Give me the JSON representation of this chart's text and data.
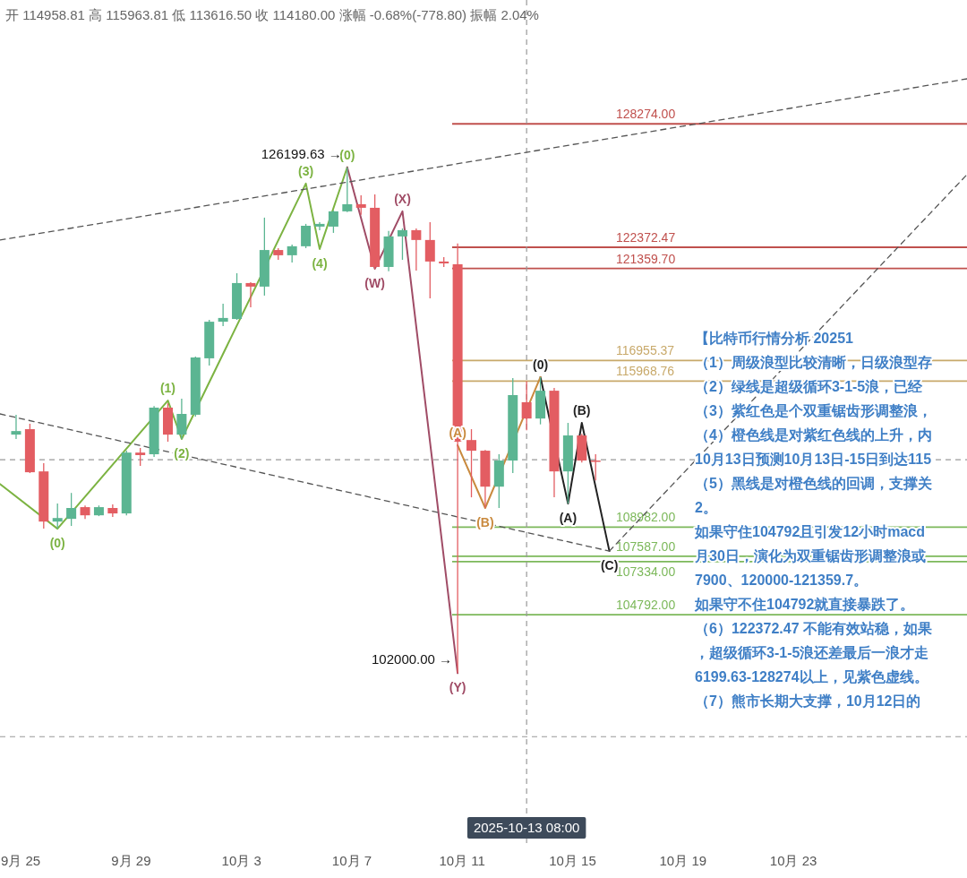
{
  "chart_data": {
    "type": "candlestick",
    "subtitle": "开 114958.81 高 115963.81 低 113616.50 收 114180.00 涨幅 -0.68%(-778.80) 振幅 2.04%",
    "x": [
      "2025-09-24T20:00",
      "2025-09-25T08:00",
      "2025-09-25T20:00",
      "2025-09-26T08:00",
      "2025-09-26T20:00",
      "2025-09-27T08:00",
      "2025-09-27T20:00",
      "2025-09-28T08:00",
      "2025-09-28T20:00",
      "2025-09-29T08:00",
      "2025-09-29T20:00",
      "2025-09-30T08:00",
      "2025-09-30T20:00",
      "2025-10-01T08:00",
      "2025-10-01T20:00",
      "2025-10-02T08:00",
      "2025-10-02T20:00",
      "2025-10-03T08:00",
      "2025-10-03T20:00",
      "2025-10-04T08:00",
      "2025-10-04T20:00",
      "2025-10-05T08:00",
      "2025-10-05T20:00",
      "2025-10-06T08:00",
      "2025-10-06T20:00",
      "2025-10-07T08:00",
      "2025-10-07T20:00",
      "2025-10-08T08:00",
      "2025-10-08T20:00",
      "2025-10-09T08:00",
      "2025-10-09T20:00",
      "2025-10-10T08:00",
      "2025-10-10T20:00",
      "2025-10-11T08:00",
      "2025-10-11T20:00",
      "2025-10-12T08:00",
      "2025-10-12T20:00",
      "2025-10-13T08:00",
      "2025-10-13T20:00",
      "2025-10-14T08:00",
      "2025-10-14T20:00",
      "2025-10-15T08:00",
      "2025-10-15T20:00"
    ],
    "ohlc": [
      [
        113410,
        114360,
        113200,
        113580
      ],
      [
        113670,
        113930,
        111570,
        111610
      ],
      [
        111650,
        112040,
        108910,
        109250
      ],
      [
        109250,
        110110,
        108910,
        109420
      ],
      [
        109380,
        110620,
        109040,
        109900
      ],
      [
        109940,
        110020,
        109380,
        109550
      ],
      [
        109550,
        110020,
        109510,
        109940
      ],
      [
        109900,
        110070,
        109470,
        109640
      ],
      [
        109640,
        112640,
        109550,
        112550
      ],
      [
        112550,
        112770,
        111910,
        112430
      ],
      [
        112470,
        114780,
        112340,
        114700
      ],
      [
        114700,
        114910,
        113070,
        113410
      ],
      [
        113410,
        115130,
        113200,
        114400
      ],
      [
        114360,
        117140,
        114270,
        117100
      ],
      [
        117060,
        118900,
        116710,
        118810
      ],
      [
        118810,
        119670,
        118600,
        118990
      ],
      [
        118940,
        121130,
        118900,
        120660
      ],
      [
        120660,
        120700,
        119500,
        120490
      ],
      [
        120490,
        123790,
        120060,
        122240
      ],
      [
        122240,
        122330,
        121770,
        121990
      ],
      [
        121990,
        122500,
        121640,
        122420
      ],
      [
        122420,
        123490,
        122330,
        123400
      ],
      [
        123360,
        123570,
        123190,
        123490
      ],
      [
        123360,
        124130,
        123060,
        124090
      ],
      [
        124090,
        126199.63,
        124050,
        124430
      ],
      [
        124430,
        124860,
        123920,
        124260
      ],
      [
        124260,
        124900,
        121340,
        121430
      ],
      [
        121430,
        123150,
        121220,
        122890
      ],
      [
        122890,
        123270,
        121770,
        123190
      ],
      [
        123190,
        123270,
        121260,
        122720
      ],
      [
        122720,
        123570,
        119930,
        121690
      ],
      [
        121690,
        121900,
        121430,
        121600
      ],
      [
        121560,
        122550,
        102000,
        113070
      ],
      [
        113150,
        113670,
        110410,
        112640
      ],
      [
        112640,
        112680,
        109900,
        110920
      ],
      [
        110920,
        112470,
        109900,
        112170
      ],
      [
        112170,
        116110,
        111570,
        115300
      ],
      [
        114958.81,
        115963.81,
        113616.5,
        114180
      ],
      [
        114180,
        116160,
        113900,
        115510
      ],
      [
        115510,
        115640,
        110410,
        111650
      ],
      [
        111650,
        113970,
        110110,
        113370
      ],
      [
        113370,
        113450,
        112080,
        112170
      ],
      [
        112170,
        112470,
        111220,
        112160
      ]
    ],
    "colors": [
      "#5bb592",
      "#e35d62",
      "#e35d62",
      "#5bb592",
      "#5bb592",
      "#e35d62",
      "#5bb592",
      "#e35d62",
      "#5bb592",
      "#e35d62",
      "#5bb592",
      "#e35d62",
      "#5bb592",
      "#5bb592",
      "#5bb592",
      "#5bb592",
      "#5bb592",
      "#e35d62",
      "#5bb592",
      "#e35d62",
      "#5bb592",
      "#5bb592",
      "#5bb592",
      "#5bb592",
      "#5bb592",
      "#e35d62",
      "#e35d62",
      "#5bb592",
      "#5bb592",
      "#e35d62",
      "#e35d62",
      "#e35d62",
      "#e35d62",
      "#e35d62",
      "#e35d62",
      "#5bb592",
      "#5bb592",
      "#e35d62",
      "#5bb592",
      "#e35d62",
      "#5bb592",
      "#e35d62",
      "#e35d62"
    ],
    "series": [
      {
        "type": "line",
        "color": "#7cb342",
        "x": [
          "2025-09-24T06:00",
          "2025-09-26T08:00",
          "2025-09-30T08:00",
          "2025-09-30T20:00",
          "2025-10-05T08:00",
          "2025-10-05T20:00",
          "2025-10-06T20:00"
        ],
        "values": [
          111050,
          108910,
          115040,
          113200,
          125420,
          122290,
          126200
        ]
      },
      {
        "type": "line",
        "color": "#a04c66",
        "x": [
          "2025-10-06T20:00",
          "2025-10-07T20:00",
          "2025-10-08T20:00",
          "2025-10-10T20:00"
        ],
        "values": [
          126200,
          121340,
          124090,
          102000
        ]
      },
      {
        "type": "line",
        "color": "#222222",
        "x": [
          "2025-10-13T20:00",
          "2025-10-14T20:00",
          "2025-10-15T08:00",
          "2025-10-16T08:00"
        ],
        "values": [
          116160,
          110110,
          113970,
          107840
        ]
      },
      {
        "type": "line",
        "color": "#c98a3e",
        "x": [
          "2025-10-10T20:00",
          "2025-10-11T20:00",
          "2025-10-13T20:00"
        ],
        "values": [
          112900,
          109900,
          116160
        ]
      },
      {
        "type": "line",
        "color": "#555555",
        "line_style": "dashed",
        "x": [
          "2025-09-24T06:00",
          "2025-10-29T07:00"
        ],
        "values": [
          122720,
          130430
        ]
      },
      {
        "type": "line",
        "color": "#555555",
        "line_style": "dashed",
        "x": [
          "2025-09-24T06:00",
          "2025-10-16T08:00"
        ],
        "values": [
          114400,
          107840
        ]
      },
      {
        "type": "line",
        "color": "#555555",
        "line_style": "dashed",
        "x": [
          "2025-10-16T08:00",
          "2025-10-29T07:00"
        ],
        "values": [
          107840,
          125850
        ]
      }
    ],
    "xlim": [
      "2025-09-24T06:00",
      "2025-10-29T07:00"
    ],
    "xticks": [
      {
        "value": "2025-09-25",
        "label": "9月 25"
      },
      {
        "value": "2025-09-29",
        "label": "9月 29"
      },
      {
        "value": "2025-10-03",
        "label": "10月 3"
      },
      {
        "value": "2025-10-07",
        "label": "10月 7"
      },
      {
        "value": "2025-10-11",
        "label": "10月 11"
      },
      {
        "value": "2025-10-15",
        "label": "10月 15"
      },
      {
        "value": "2025-10-19",
        "label": "10月 19"
      },
      {
        "value": "2025-10-23",
        "label": "10月 23"
      }
    ],
    "ylim": [
      93700,
      134200
    ],
    "tick_labels": "x",
    "ref_lines": [
      {
        "axis": "y",
        "value": 128274,
        "label": "128274.00",
        "color": "#c0504d"
      },
      {
        "axis": "y",
        "value": 122372.47,
        "label": "122372.47",
        "color": "#c0504d"
      },
      {
        "axis": "y",
        "value": 121359.7,
        "label": "121359.70",
        "color": "#c0504d"
      },
      {
        "axis": "y",
        "value": 116955.37,
        "label": "116955.37",
        "color": "#c8a96a"
      },
      {
        "axis": "y",
        "value": 115968.76,
        "label": "115968.76",
        "color": "#c8a96a"
      },
      {
        "axis": "y",
        "value": 108982,
        "label": "108982.00",
        "color": "#7cb85a"
      },
      {
        "axis": "y",
        "value": 107587,
        "label": "107587.00",
        "color": "#7cb85a"
      },
      {
        "axis": "y",
        "value": 107334,
        "label": "107334.00",
        "color": "#7cb85a"
      },
      {
        "axis": "y",
        "value": 104792,
        "label": "104792.00",
        "color": "#7cb85a"
      },
      {
        "axis": "y",
        "value": 112210,
        "color": "#999999",
        "line_style": "dashed"
      },
      {
        "axis": "y",
        "value": 98960,
        "color": "#999999",
        "line_style": "dashed"
      },
      {
        "axis": "x",
        "value": "2025-10-13T08:00",
        "label": "2025-10-13 08:00",
        "color": "#999999",
        "line_style": "dashed"
      }
    ],
    "annotations": [
      "【比特币行情分析 20251",
      "（1）周级浪型比较清晰，日级浪型存",
      "（2）绿线是超级循环3-1-5浪，已经",
      "（3）紫红色是个双重锯齿形调整浪，",
      "（4）橙色线是对紫红色线的上升，内",
      "10月13日预测10月13日-15日到达115",
      "（5）黑线是对橙色线的回调，支撑关",
      "2。",
      "如果守住104792且引发12小时macd",
      "月30日，演化为双重锯齿形调整浪或",
      "7900、120000-121359.7。",
      "如果守不住104792就直接暴跌了。",
      "（6）122372.47 不能有效站稳，如果",
      "，超级循环3-1-5浪还差最后一浪才走",
      "6199.63-128274以上，见紫色虚线。",
      "（7）熊市长期大支撑，10月12日的",
      {
        "text": "(0)",
        "x": "2025-09-26T08:00",
        "y": 108910
      },
      {
        "text": "(1)",
        "x": "2025-09-30T08:00",
        "y": 115040
      },
      {
        "text": "(2)",
        "x": "2025-09-30T20:00",
        "y": 113200
      },
      {
        "text": "(3)",
        "x": "2025-10-05T08:00",
        "y": 125420
      },
      {
        "text": "(4)",
        "x": "2025-10-05T20:00",
        "y": 122290
      },
      {
        "text": "(0)",
        "x": "2025-10-06T20:00",
        "y": 126200
      },
      {
        "text": "126199.63 →",
        "x": "2025-10-06T20:00",
        "y": 126200
      },
      {
        "text": "(W)",
        "x": "2025-10-07T20:00",
        "y": 121340
      },
      {
        "text": "(X)",
        "x": "2025-10-08T20:00",
        "y": 124090
      },
      {
        "text": "(Y)",
        "x": "2025-10-10T20:00",
        "y": 102000
      },
      {
        "text": "102000.00 →",
        "x": "2025-10-10T20:00",
        "y": 102000
      },
      {
        "text": "(A)",
        "x": "2025-10-10T20:00",
        "y": 112900
      },
      {
        "text": "(B)",
        "x": "2025-10-11T20:00",
        "y": 109900
      },
      {
        "text": "(0)",
        "x": "2025-10-13T20:00",
        "y": 116160
      },
      {
        "text": "(A)",
        "x": "2025-10-14T20:00",
        "y": 110110
      },
      {
        "text": "(B)",
        "x": "2025-10-15T08:00",
        "y": 113970
      },
      {
        "text": "(C)",
        "x": "2025-10-16T08:00",
        "y": 107840
      }
    ]
  }
}
